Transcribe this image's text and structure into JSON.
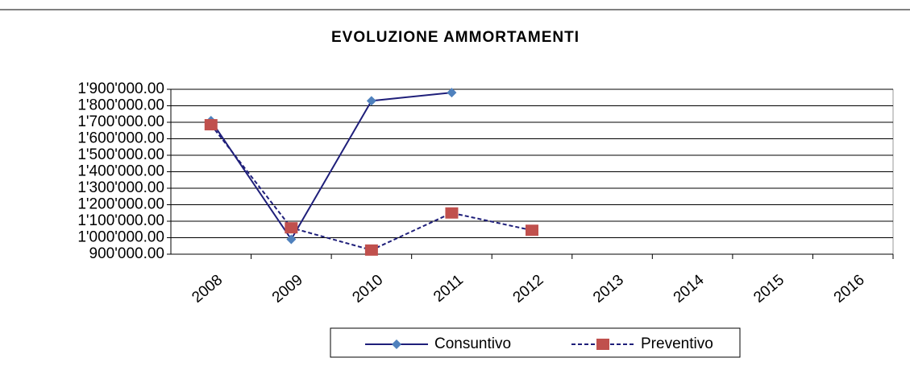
{
  "chart_data": {
    "type": "line",
    "title": "EVOLUZIONE AMMORTAMENTI",
    "categories": [
      "2008",
      "2009",
      "2010",
      "2011",
      "2012",
      "2013",
      "2014",
      "2015",
      "2016"
    ],
    "series": [
      {
        "name": "Consuntivo",
        "color": "#1f1f7a",
        "marker_color": "#4f81bd",
        "marker": "diamond",
        "dash": false,
        "values": [
          1710000,
          990000,
          1830000,
          1880000,
          null,
          null,
          null,
          null,
          null
        ]
      },
      {
        "name": "Preventivo",
        "color": "#1f1f7a",
        "marker_color": "#c0504d",
        "marker": "square",
        "dash": true,
        "values": [
          1685000,
          1060000,
          925000,
          1150000,
          1045000,
          null,
          null,
          null,
          null
        ]
      }
    ],
    "ylim": [
      900000,
      1900000
    ],
    "yticks": [
      {
        "value": 900000,
        "label": "900'000.00"
      },
      {
        "value": 1000000,
        "label": "1'000'000.00"
      },
      {
        "value": 1100000,
        "label": "1'100'000.00"
      },
      {
        "value": 1200000,
        "label": "1'200'000.00"
      },
      {
        "value": 1300000,
        "label": "1'300'000.00"
      },
      {
        "value": 1400000,
        "label": "1'400'000.00"
      },
      {
        "value": 1500000,
        "label": "1'500'000.00"
      },
      {
        "value": 1600000,
        "label": "1'600'000.00"
      },
      {
        "value": 1700000,
        "label": "1'700'000.00"
      },
      {
        "value": 1800000,
        "label": "1'800'000.00"
      },
      {
        "value": 1900000,
        "label": "1'900'000.00"
      }
    ],
    "grid": true,
    "legend": "bottom"
  }
}
